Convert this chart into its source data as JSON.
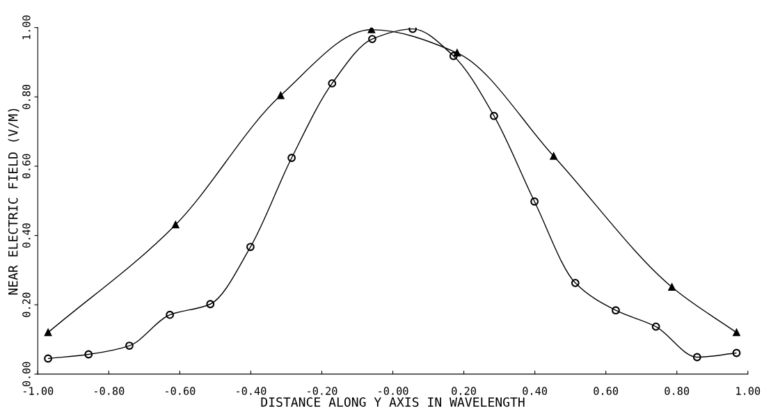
{
  "chart_data": {
    "type": "line",
    "xlabel": "DISTANCE ALONG Y AXIS IN WAVELENGTH",
    "ylabel": "NEAR ELECTRIC FIELD (V/M)",
    "xlim": [
      -1.0,
      1.0
    ],
    "ylim": [
      0.0,
      1.0
    ],
    "xticks": [
      {
        "value": -1.0,
        "label": "-1.00"
      },
      {
        "value": -0.8,
        "label": "-0.80"
      },
      {
        "value": -0.6,
        "label": "-0.60"
      },
      {
        "value": -0.4,
        "label": "-0.40"
      },
      {
        "value": -0.2,
        "label": "-0.20"
      },
      {
        "value": 0,
        "label": "-0.00"
      },
      {
        "value": 0.2,
        "label": "0.20"
      },
      {
        "value": 0.4,
        "label": "0.40"
      },
      {
        "value": 0.6,
        "label": "0.60"
      },
      {
        "value": 0.8,
        "label": "0.80"
      },
      {
        "value": 1.0,
        "label": "1.00"
      }
    ],
    "yticks": [
      {
        "value": 0,
        "label": "0.00"
      },
      {
        "value": 0.2,
        "label": "0.20"
      },
      {
        "value": 0.4,
        "label": "0.40"
      },
      {
        "value": 0.6,
        "label": "0.60"
      },
      {
        "value": 0.8,
        "label": "0.80"
      },
      {
        "value": 1.0,
        "label": "1.00"
      }
    ],
    "grid": false,
    "legend": false,
    "series": [
      {
        "color": "#000000",
        "marker": "triangle",
        "x": [
          -0.971,
          -0.612,
          -0.316,
          -0.06,
          0.181,
          0.453,
          0.786,
          0.968
        ],
        "values": [
          0.12,
          0.431,
          0.804,
          0.994,
          0.927,
          0.629,
          0.251,
          0.12
        ]
      },
      {
        "color": "#000000",
        "marker": "circle",
        "x": [
          -0.971,
          -0.857,
          -0.742,
          -0.628,
          -0.514,
          -0.401,
          -0.285,
          -0.171,
          -0.058,
          0.056,
          0.171,
          0.285,
          0.399,
          0.514,
          0.628,
          0.741,
          0.857,
          0.968
        ],
        "values": [
          0.045,
          0.057,
          0.082,
          0.171,
          0.202,
          0.367,
          0.624,
          0.839,
          0.967,
          0.996,
          0.918,
          0.745,
          0.498,
          0.263,
          0.184,
          0.137,
          0.049,
          0.061
        ]
      }
    ]
  }
}
